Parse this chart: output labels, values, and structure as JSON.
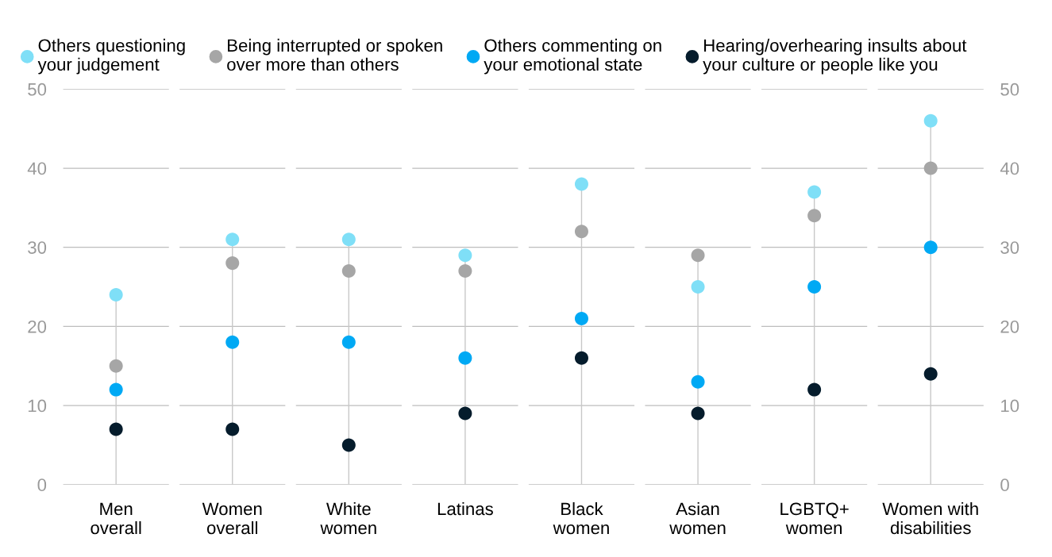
{
  "chart_data": {
    "type": "scatter",
    "categories": [
      "Men\noverall",
      "Women\noverall",
      "White\nwomen",
      "Latinas",
      "Black\nwomen",
      "Asian\nwomen",
      "LGBTQ+\nwomen",
      "Women with\ndisabilities"
    ],
    "series": [
      {
        "name": "Others questioning\nyour judgement",
        "color": "#7fdff7",
        "values": [
          24,
          31,
          31,
          29,
          38,
          25,
          37,
          46
        ]
      },
      {
        "name": "Being interrupted or spoken\nover more than others",
        "color": "#a6a6a6",
        "values": [
          15,
          28,
          27,
          27,
          32,
          29,
          34,
          40
        ]
      },
      {
        "name": "Others commenting on\nyour emotional state",
        "color": "#00a9f4",
        "values": [
          12,
          18,
          18,
          16,
          21,
          13,
          25,
          30
        ]
      },
      {
        "name": "Hearing/overhearing insults about\nyour culture or people like you",
        "color": "#051c2c",
        "values": [
          7,
          7,
          5,
          9,
          16,
          9,
          12,
          14
        ]
      }
    ],
    "ylim": [
      0,
      50
    ],
    "yticks": [
      0,
      10,
      20,
      30,
      40,
      50
    ],
    "y2lim": [
      0,
      50
    ],
    "y2ticks": [
      0,
      10,
      20,
      30,
      40,
      50
    ],
    "grid": true,
    "legend": "top",
    "marker": "circle"
  }
}
